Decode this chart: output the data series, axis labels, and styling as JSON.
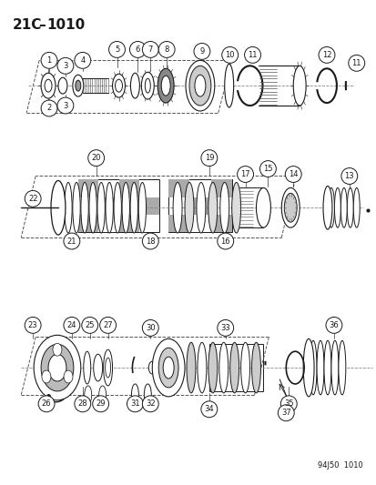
{
  "title": "21C–1010",
  "watermark": "94J50  1010",
  "bg_color": "#ffffff",
  "line_color": "#1a1a1a",
  "border_color": "#888888"
}
